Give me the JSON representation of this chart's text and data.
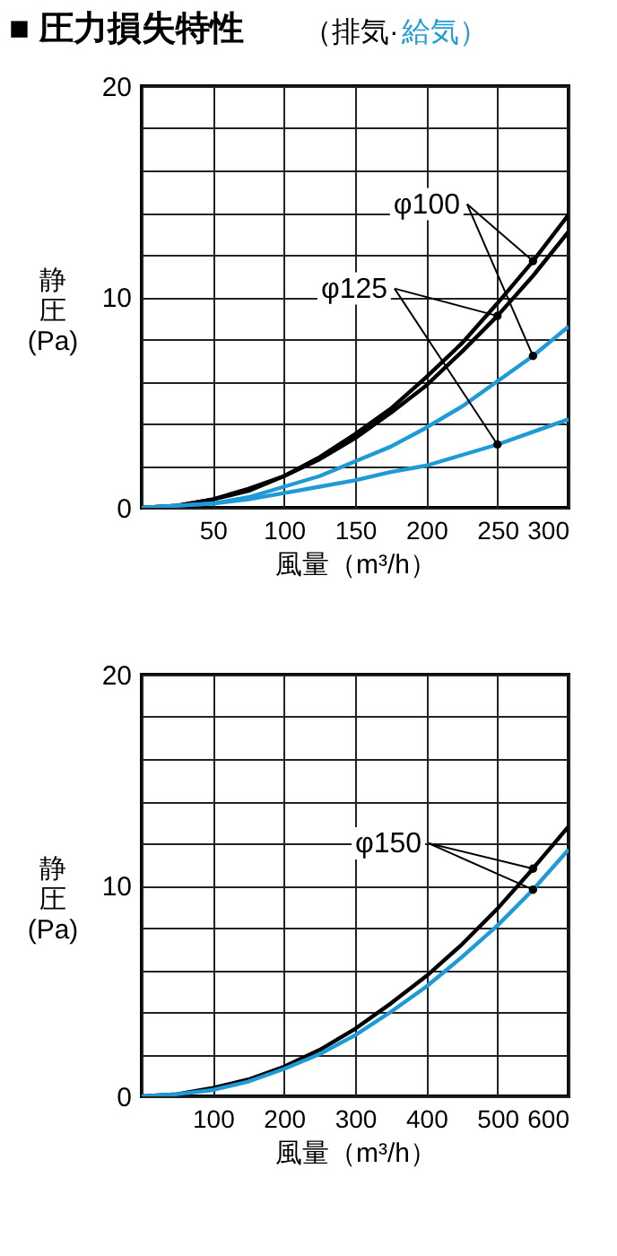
{
  "chart_data": [
    {
      "type": "line",
      "title": "■ 圧力損失特性",
      "subtitle": "（排気·給気）",
      "xlabel": "風量（m³/h）",
      "ylabel": "静圧(Pa)",
      "x": [
        0,
        25,
        50,
        75,
        100,
        125,
        150,
        175,
        200,
        225,
        250,
        275,
        300
      ],
      "series": [
        {
          "name": "φ100",
          "color": "#000000",
          "values": [
            0,
            0.1,
            0.4,
            0.9,
            1.5,
            2.4,
            3.5,
            4.7,
            6.2,
            7.8,
            9.7,
            11.7,
            13.9
          ]
        },
        {
          "name": "φ125",
          "color": "#000000",
          "values": [
            0,
            0.1,
            0.4,
            0.8,
            1.5,
            2.3,
            3.3,
            4.5,
            5.8,
            7.4,
            9.1,
            11.0,
            13.1
          ]
        },
        {
          "color": "#1e9ad6",
          "values": [
            0,
            0.1,
            0.2,
            0.5,
            1.0,
            1.5,
            2.2,
            2.9,
            3.8,
            4.8,
            6.0,
            7.2,
            8.6
          ]
        },
        {
          "color": "#1e9ad6",
          "values": [
            0,
            0.1,
            0.2,
            0.4,
            0.7,
            1.0,
            1.3,
            1.7,
            2.0,
            2.5,
            3.0,
            3.6,
            4.2
          ]
        }
      ],
      "xlim": [
        0,
        300
      ],
      "ylim": [
        0,
        20
      ],
      "xticks": [
        {
          "value": 0,
          "label": null
        },
        50,
        100,
        150,
        200,
        250,
        300
      ],
      "yticks": [
        0,
        {
          "value": 2,
          "label": null
        },
        {
          "value": 4,
          "label": null
        },
        {
          "value": 6,
          "label": null
        },
        {
          "value": 8,
          "label": null
        },
        10,
        {
          "value": 12,
          "label": null
        },
        {
          "value": 14,
          "label": null
        },
        {
          "value": 16,
          "label": null
        },
        {
          "value": 18,
          "label": null
        },
        20
      ],
      "grid": true
    },
    {
      "type": "line",
      "xlabel": "風量（m³/h）",
      "ylabel": "静圧(Pa)",
      "x": [
        0,
        50,
        100,
        150,
        200,
        250,
        300,
        350,
        400,
        450,
        500,
        550,
        600
      ],
      "series": [
        {
          "name": "φ150",
          "color": "#000000",
          "values": [
            0,
            0.1,
            0.4,
            0.8,
            1.4,
            2.2,
            3.2,
            4.4,
            5.7,
            7.2,
            8.9,
            10.8,
            12.8
          ]
        },
        {
          "color": "#1e9ad6",
          "values": [
            0,
            0.1,
            0.3,
            0.7,
            1.3,
            2.0,
            2.9,
            4.0,
            5.2,
            6.6,
            8.1,
            9.8,
            11.7
          ]
        }
      ],
      "xlim": [
        0,
        600
      ],
      "ylim": [
        0,
        20
      ],
      "xticks": [
        {
          "value": 0,
          "label": null
        },
        100,
        200,
        300,
        400,
        500,
        600
      ],
      "yticks": [
        0,
        {
          "value": 2,
          "label": null
        },
        {
          "value": 4,
          "label": null
        },
        {
          "value": 6,
          "label": null
        },
        {
          "value": 8,
          "label": null
        },
        10,
        {
          "value": 12,
          "label": null
        },
        {
          "value": 14,
          "label": null
        },
        {
          "value": 16,
          "label": null
        },
        {
          "value": 18,
          "label": null
        },
        20
      ],
      "grid": true
    }
  ]
}
